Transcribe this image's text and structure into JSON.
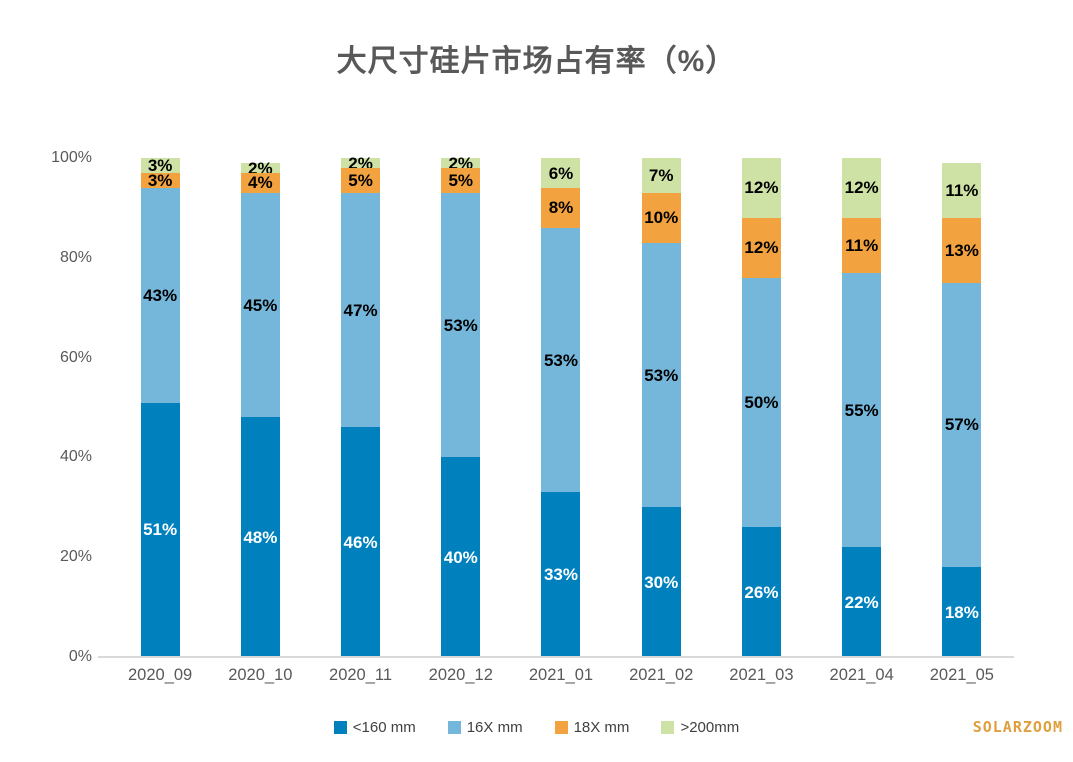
{
  "title": "大尺寸硅片市场占有率（%）",
  "watermark": "SOLARZOOM",
  "colors": {
    "title_text": "#595959",
    "axis_text": "#595959",
    "axis_line": "#d9d9d9",
    "legend_text": "#404040",
    "watermark_text": "#df9f3c"
  },
  "chart_data": {
    "type": "bar",
    "stacked": true,
    "title": "大尺寸硅片市场占有率（%）",
    "categories": [
      "2020_09",
      "2020_10",
      "2020_11",
      "2020_12",
      "2021_01",
      "2021_02",
      "2021_03",
      "2021_04",
      "2021_05"
    ],
    "series": [
      {
        "name": "<160 mm",
        "color": "#0081be",
        "label_color": "#ffffff",
        "values": [
          51,
          48,
          46,
          40,
          33,
          30,
          26,
          22,
          18
        ]
      },
      {
        "name": "16X mm",
        "color": "#74b7db",
        "label_color": "#000000",
        "values": [
          43,
          45,
          47,
          53,
          53,
          53,
          50,
          55,
          57
        ]
      },
      {
        "name": "18X mm",
        "color": "#f2a23e",
        "label_color": "#000000",
        "values": [
          3,
          4,
          5,
          5,
          8,
          10,
          12,
          11,
          13
        ]
      },
      {
        "name": ">200mm",
        "color": "#cee2a5",
        "label_color": "#000000",
        "values": [
          3,
          2,
          2,
          2,
          6,
          7,
          12,
          12,
          11
        ]
      }
    ],
    "xlabel": "",
    "ylabel": "",
    "ylim": [
      0,
      100
    ],
    "y_ticks": [
      {
        "label": "0%",
        "value": 0
      },
      {
        "label": "20%",
        "value": 20
      },
      {
        "label": "40%",
        "value": 40
      },
      {
        "label": "60%",
        "value": 60
      },
      {
        "label": "80%",
        "value": 80
      },
      {
        "label": "100%",
        "value": 100
      }
    ],
    "grid": false,
    "legend_position": "bottom",
    "data_label_suffix": "%"
  }
}
